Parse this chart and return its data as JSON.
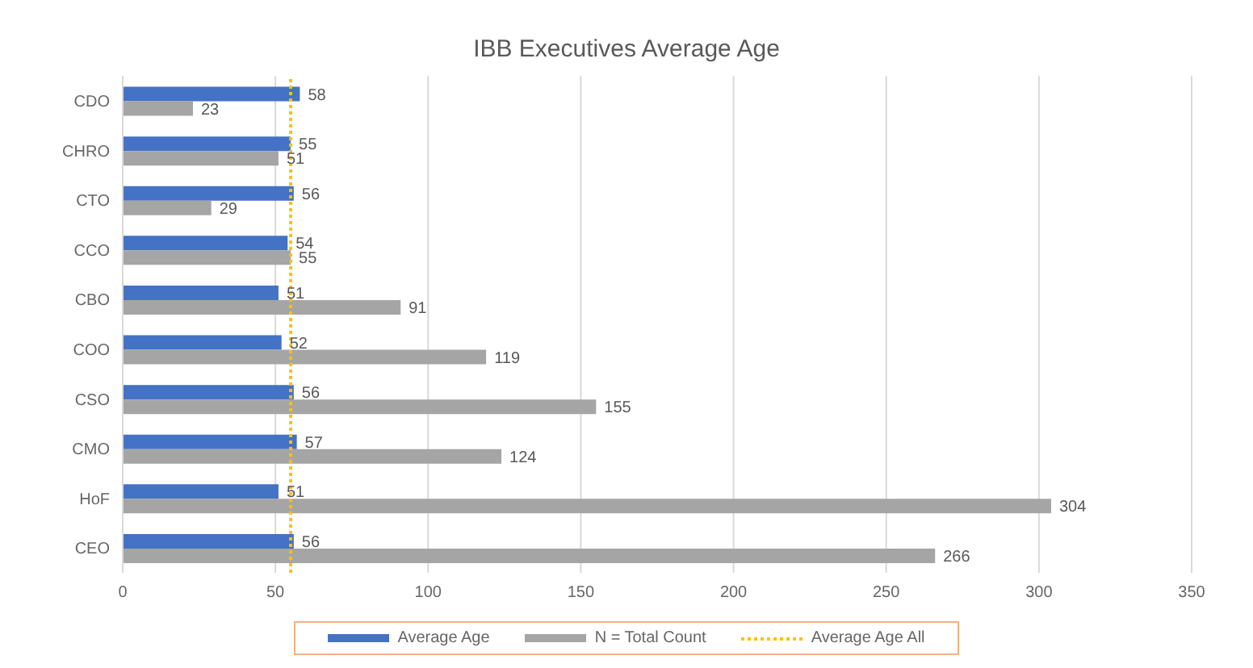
{
  "chart_data": {
    "type": "bar",
    "orientation": "horizontal",
    "title": "IBB Executives Average Age",
    "categories": [
      "CDO",
      "CHRO",
      "CTO",
      "CCO",
      "CBO",
      "COO",
      "CSO",
      "CMO",
      "HoF",
      "CEO"
    ],
    "series": [
      {
        "name": "Average Age",
        "color": "#4472c4",
        "values": [
          58,
          55,
          56,
          54,
          51,
          52,
          56,
          57,
          51,
          56
        ]
      },
      {
        "name": "N = Total Count",
        "color": "#a5a5a5",
        "values": [
          23,
          51,
          29,
          55,
          91,
          119,
          155,
          124,
          304,
          266
        ]
      }
    ],
    "ref_lines": [
      {
        "axis": "x",
        "value": 55,
        "label": "Average Age All",
        "color": "#ffc000",
        "line_style": "dotted"
      }
    ],
    "xlim": [
      0,
      350
    ],
    "xticks": [
      0,
      50,
      100,
      150,
      200,
      250,
      300,
      350
    ],
    "grid": "x",
    "legend": "bottom",
    "data_labels": true
  }
}
